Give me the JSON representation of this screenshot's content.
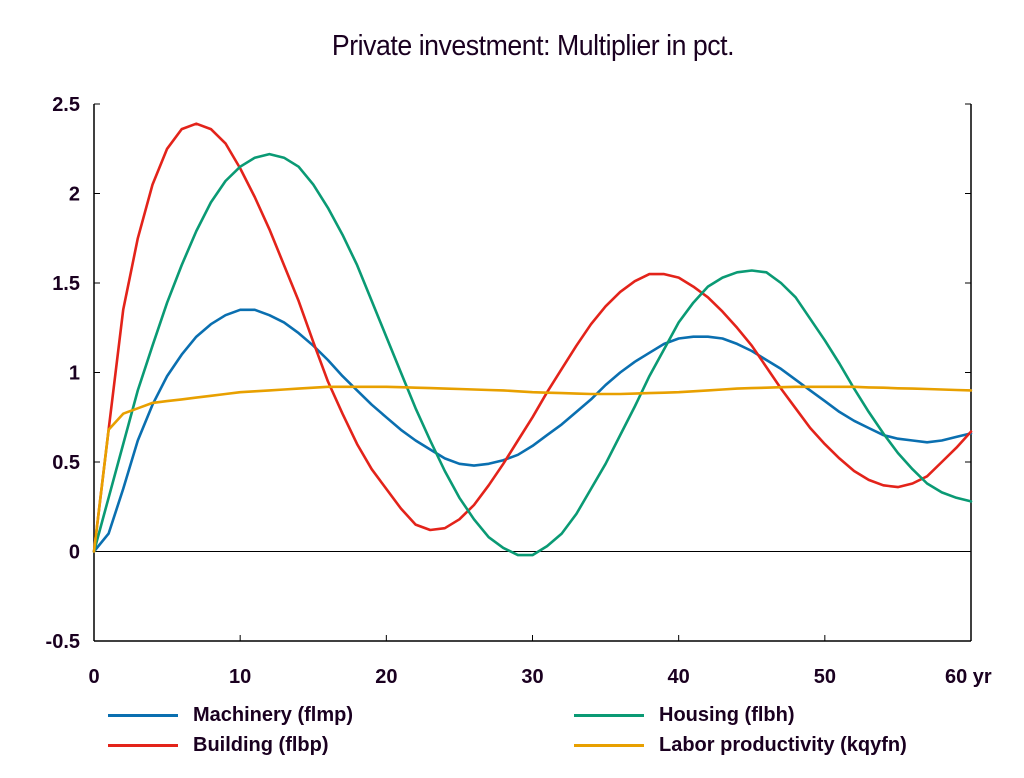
{
  "chart_data": {
    "type": "line",
    "title": "Private investment: Multiplier in pct.",
    "xlabel": "",
    "ylabel": "",
    "xlim": [
      0,
      60
    ],
    "ylim": [
      -0.5,
      2.5
    ],
    "x_ticks": [
      0,
      10,
      20,
      30,
      40,
      50,
      60
    ],
    "x_tick_labels": [
      "0",
      "10",
      "20",
      "30",
      "40",
      "50",
      "60 yr"
    ],
    "y_ticks": [
      -0.5,
      0,
      0.5,
      1,
      1.5,
      2,
      2.5
    ],
    "y_tick_labels": [
      "-0.5",
      "0",
      "0.5",
      "1",
      "1.5",
      "2",
      "2.5"
    ],
    "grid": false,
    "zero_line": true,
    "legend_position": "bottom",
    "series": [
      {
        "name": "Machinery (flmp)",
        "color": "#0a6fb0",
        "x": [
          0,
          1,
          2,
          3,
          4,
          5,
          6,
          7,
          8,
          9,
          10,
          11,
          12,
          13,
          14,
          15,
          16,
          17,
          18,
          19,
          20,
          21,
          22,
          23,
          24,
          25,
          26,
          27,
          28,
          29,
          30,
          31,
          32,
          33,
          34,
          35,
          36,
          37,
          38,
          39,
          40,
          41,
          42,
          43,
          44,
          45,
          46,
          47,
          48,
          49,
          50,
          51,
          52,
          53,
          54,
          55,
          56,
          57,
          58,
          59,
          60
        ],
        "values": [
          0,
          0.1,
          0.35,
          0.62,
          0.82,
          0.98,
          1.1,
          1.2,
          1.27,
          1.32,
          1.35,
          1.35,
          1.32,
          1.28,
          1.22,
          1.15,
          1.07,
          0.98,
          0.9,
          0.82,
          0.75,
          0.68,
          0.62,
          0.57,
          0.52,
          0.49,
          0.48,
          0.49,
          0.51,
          0.54,
          0.59,
          0.65,
          0.71,
          0.78,
          0.85,
          0.93,
          1.0,
          1.06,
          1.11,
          1.16,
          1.19,
          1.2,
          1.2,
          1.19,
          1.16,
          1.12,
          1.07,
          1.02,
          0.96,
          0.9,
          0.84,
          0.78,
          0.73,
          0.69,
          0.65,
          0.63,
          0.62,
          0.61,
          0.62,
          0.64,
          0.66
        ]
      },
      {
        "name": "Building (flbp)",
        "color": "#e3231a",
        "x": [
          0,
          1,
          2,
          3,
          4,
          5,
          6,
          7,
          8,
          9,
          10,
          11,
          12,
          13,
          14,
          15,
          16,
          17,
          18,
          19,
          20,
          21,
          22,
          23,
          24,
          25,
          26,
          27,
          28,
          29,
          30,
          31,
          32,
          33,
          34,
          35,
          36,
          37,
          38,
          39,
          40,
          41,
          42,
          43,
          44,
          45,
          46,
          47,
          48,
          49,
          50,
          51,
          52,
          53,
          54,
          55,
          56,
          57,
          58,
          59,
          60
        ],
        "values": [
          0,
          0.68,
          1.35,
          1.75,
          2.05,
          2.25,
          2.36,
          2.39,
          2.36,
          2.28,
          2.14,
          1.98,
          1.8,
          1.6,
          1.4,
          1.17,
          0.95,
          0.77,
          0.6,
          0.46,
          0.35,
          0.24,
          0.15,
          0.12,
          0.13,
          0.18,
          0.26,
          0.37,
          0.49,
          0.62,
          0.75,
          0.89,
          1.02,
          1.15,
          1.27,
          1.37,
          1.45,
          1.51,
          1.55,
          1.55,
          1.53,
          1.48,
          1.42,
          1.34,
          1.25,
          1.15,
          1.03,
          0.91,
          0.8,
          0.69,
          0.6,
          0.52,
          0.45,
          0.4,
          0.37,
          0.36,
          0.38,
          0.42,
          0.5,
          0.58,
          0.67
        ]
      },
      {
        "name": "Housing (flbh)",
        "color": "#0a9a74",
        "x": [
          0,
          1,
          2,
          3,
          4,
          5,
          6,
          7,
          8,
          9,
          10,
          11,
          12,
          13,
          14,
          15,
          16,
          17,
          18,
          19,
          20,
          21,
          22,
          23,
          24,
          25,
          26,
          27,
          28,
          29,
          30,
          31,
          32,
          33,
          34,
          35,
          36,
          37,
          38,
          39,
          40,
          41,
          42,
          43,
          44,
          45,
          46,
          47,
          48,
          49,
          50,
          51,
          52,
          53,
          54,
          55,
          56,
          57,
          58,
          59,
          60
        ],
        "values": [
          0,
          0.3,
          0.6,
          0.9,
          1.15,
          1.39,
          1.6,
          1.79,
          1.95,
          2.07,
          2.15,
          2.2,
          2.22,
          2.2,
          2.15,
          2.05,
          1.92,
          1.77,
          1.6,
          1.4,
          1.2,
          1.0,
          0.8,
          0.62,
          0.45,
          0.3,
          0.18,
          0.08,
          0.02,
          -0.02,
          -0.02,
          0.03,
          0.1,
          0.21,
          0.35,
          0.49,
          0.65,
          0.81,
          0.98,
          1.13,
          1.28,
          1.39,
          1.48,
          1.53,
          1.56,
          1.57,
          1.56,
          1.5,
          1.42,
          1.3,
          1.18,
          1.05,
          0.91,
          0.78,
          0.66,
          0.55,
          0.46,
          0.38,
          0.33,
          0.3,
          0.28
        ]
      },
      {
        "name": "Labor productivity (kqyfn)",
        "color": "#e8a000",
        "x": [
          0,
          1,
          2,
          3,
          4,
          5,
          6,
          7,
          8,
          9,
          10,
          11,
          12,
          13,
          14,
          15,
          16,
          17,
          18,
          19,
          20,
          21,
          22,
          23,
          24,
          25,
          26,
          27,
          28,
          29,
          30,
          31,
          32,
          33,
          34,
          35,
          36,
          37,
          38,
          39,
          40,
          41,
          42,
          43,
          44,
          45,
          46,
          47,
          48,
          49,
          50,
          51,
          52,
          53,
          54,
          55,
          56,
          57,
          58,
          59,
          60
        ],
        "values": [
          0,
          0.68,
          0.77,
          0.8,
          0.83,
          0.84,
          0.85,
          0.86,
          0.87,
          0.88,
          0.89,
          0.895,
          0.9,
          0.905,
          0.91,
          0.915,
          0.92,
          0.92,
          0.92,
          0.92,
          0.92,
          0.918,
          0.915,
          0.913,
          0.91,
          0.908,
          0.905,
          0.902,
          0.9,
          0.895,
          0.89,
          0.887,
          0.885,
          0.882,
          0.88,
          0.88,
          0.88,
          0.882,
          0.885,
          0.887,
          0.89,
          0.895,
          0.9,
          0.905,
          0.91,
          0.913,
          0.915,
          0.918,
          0.92,
          0.92,
          0.92,
          0.92,
          0.92,
          0.917,
          0.915,
          0.912,
          0.91,
          0.908,
          0.905,
          0.902,
          0.9
        ]
      }
    ]
  }
}
